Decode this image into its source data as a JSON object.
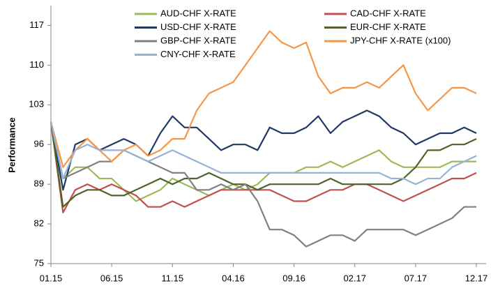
{
  "chart_data": {
    "type": "line",
    "y_label": "Performance",
    "categories": [
      "01.15",
      null,
      null,
      null,
      null,
      "06.15",
      null,
      null,
      null,
      null,
      "11.15",
      null,
      null,
      null,
      null,
      "04.16",
      null,
      null,
      null,
      null,
      "09.16",
      null,
      null,
      null,
      null,
      "02.17",
      null,
      null,
      null,
      null,
      "07.17",
      null,
      null,
      null,
      null,
      "12.17"
    ],
    "series": [
      {
        "name": "AUD-CHF X-RATE",
        "color": "#9bbb59",
        "values": [
          100,
          90,
          92,
          92,
          90,
          90,
          88,
          86,
          87,
          88,
          90,
          89,
          88,
          87,
          88,
          89,
          88,
          89,
          91,
          91,
          91,
          92,
          92,
          93,
          92,
          93,
          94,
          95,
          93,
          92,
          92,
          92,
          92,
          93,
          93,
          93
        ]
      },
      {
        "name": "CAD-CHF X-RATE",
        "color": "#c0504d",
        "values": [
          100,
          84,
          88,
          89,
          88,
          89,
          88,
          87,
          85,
          85,
          86,
          85,
          86,
          87,
          88,
          88,
          88,
          88,
          88,
          87,
          86,
          86,
          87,
          88,
          88,
          89,
          89,
          88,
          87,
          86,
          87,
          88,
          89,
          90,
          90,
          91
        ]
      },
      {
        "name": "USD-CHF X-RATE",
        "color": "#1f3864",
        "values": [
          100,
          88,
          96,
          97,
          95,
          96,
          97,
          96,
          94,
          98,
          101,
          99,
          99,
          97,
          95,
          96,
          96,
          95,
          99,
          98,
          98,
          99,
          101,
          98,
          100,
          101,
          102,
          101,
          99,
          98,
          96,
          97,
          98,
          98,
          99,
          98
        ]
      },
      {
        "name": "EUR-CHF X-RATE",
        "color": "#4f6228",
        "values": [
          100,
          85,
          87,
          88,
          88,
          87,
          87,
          88,
          89,
          90,
          89,
          90,
          90,
          91,
          90,
          89,
          89,
          88,
          89,
          89,
          89,
          89,
          89,
          90,
          89,
          89,
          89,
          89,
          89,
          90,
          92,
          95,
          95,
          96,
          96,
          97
        ]
      },
      {
        "name": "GBP-CHF X-RATE",
        "color": "#808080",
        "values": [
          100,
          90,
          91,
          92,
          93,
          93,
          95,
          94,
          93,
          92,
          91,
          91,
          88,
          88,
          89,
          88,
          89,
          86,
          81,
          81,
          80,
          78,
          79,
          80,
          80,
          79,
          81,
          81,
          81,
          81,
          80,
          81,
          82,
          83,
          85,
          85
        ]
      },
      {
        "name": "JPY-CHF X-RATE (x100)",
        "color": "#f79646",
        "values": [
          100,
          92,
          95,
          97,
          95,
          93,
          95,
          96,
          94,
          95,
          97,
          97,
          102,
          105,
          106,
          107,
          110,
          113,
          116,
          114,
          113,
          114,
          108,
          105,
          106,
          106,
          107,
          106,
          108,
          110,
          105,
          102,
          104,
          106,
          106,
          105
        ]
      },
      {
        "name": "CNY-CHF X-RATE",
        "color": "#95b3d7",
        "values": [
          100,
          90,
          95,
          96,
          95,
          95,
          95,
          94,
          93,
          94,
          95,
          94,
          93,
          92,
          91,
          91,
          91,
          91,
          91,
          91,
          91,
          91,
          91,
          91,
          91,
          91,
          91,
          91,
          90,
          90,
          89,
          90,
          90,
          92,
          93,
          94
        ]
      }
    ],
    "ylim": [
      75,
      120.5
    ],
    "yticks": [
      75,
      82,
      89,
      96,
      103,
      110,
      117
    ],
    "grid": false
  }
}
